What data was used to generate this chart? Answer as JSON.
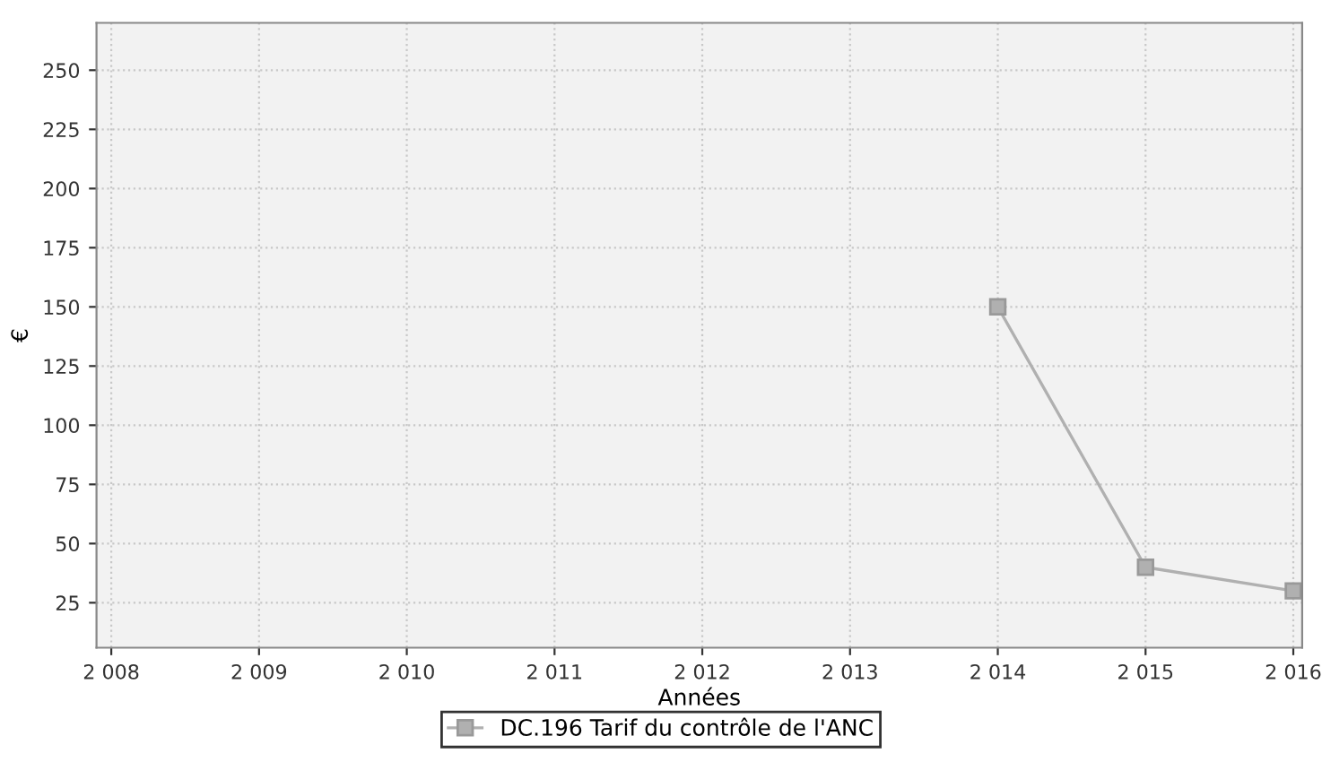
{
  "chart_data": {
    "type": "line",
    "xlabel": "Années",
    "ylabel": "€",
    "x": [
      2014,
      2015,
      2016
    ],
    "series": [
      {
        "name": "DC.196 Tarif du contrôle de l'ANC",
        "color": "#b0b0b0",
        "values": [
          150,
          40,
          30
        ]
      }
    ],
    "xlim": [
      2007.9,
      2016.06
    ],
    "ylim": [
      6,
      270
    ],
    "xticks": [
      {
        "value": 2008,
        "label": "2 008"
      },
      {
        "value": 2009,
        "label": "2 009"
      },
      {
        "value": 2010,
        "label": "2 010"
      },
      {
        "value": 2011,
        "label": "2 011"
      },
      {
        "value": 2012,
        "label": "2 012"
      },
      {
        "value": 2013,
        "label": "2 013"
      },
      {
        "value": 2014,
        "label": "2 014"
      },
      {
        "value": 2015,
        "label": "2 015"
      },
      {
        "value": 2016,
        "label": "2 016"
      }
    ],
    "yticks": [
      25,
      50,
      75,
      100,
      125,
      150,
      175,
      200,
      225,
      250
    ],
    "grid": true,
    "legend": "bottom",
    "marker": "square",
    "line_style": "solid"
  }
}
